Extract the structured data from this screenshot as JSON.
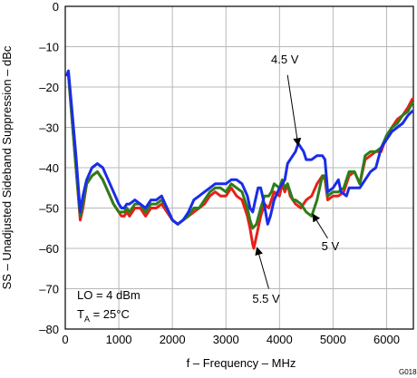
{
  "chart_data": {
    "type": "line",
    "title": "",
    "xlabel": "f – Frequency – MHz",
    "ylabel": "SS – Unadjusted Sideband Suppression – dBc",
    "xlim": [
      0,
      6500
    ],
    "ylim": [
      -80,
      0
    ],
    "x_ticks": [
      0,
      1000,
      2000,
      3000,
      4000,
      5000,
      6000
    ],
    "y_ticks": [
      0,
      -10,
      -20,
      -30,
      -40,
      -50,
      -60,
      -70,
      -80
    ],
    "x_tick_labels": [
      "0",
      "1000",
      "2000",
      "3000",
      "4000",
      "5000",
      "6000"
    ],
    "y_tick_labels": [
      "0",
      "–10",
      "–20",
      "–30",
      "–40",
      "–50",
      "–60",
      "–70",
      "–80"
    ],
    "grid": true,
    "legend": "none",
    "annotations": {
      "lo_text": "LO = 4 dBm",
      "ta_text": "T",
      "ta_sub": "A",
      "ta_value": " = 25°C",
      "figure_id": "G018"
    },
    "series": [
      {
        "name": "5.5 V",
        "color": "#e8201a",
        "points": [
          [
            30,
            -17
          ],
          [
            60,
            -17
          ],
          [
            120,
            -27
          ],
          [
            200,
            -40
          ],
          [
            280,
            -53
          ],
          [
            330,
            -50
          ],
          [
            400,
            -44
          ],
          [
            500,
            -42
          ],
          [
            600,
            -41
          ],
          [
            700,
            -43
          ],
          [
            800,
            -46
          ],
          [
            900,
            -49
          ],
          [
            1000,
            -51
          ],
          [
            1050,
            -52
          ],
          [
            1100,
            -52
          ],
          [
            1150,
            -51
          ],
          [
            1200,
            -52
          ],
          [
            1300,
            -50
          ],
          [
            1400,
            -50
          ],
          [
            1500,
            -52
          ],
          [
            1600,
            -50
          ],
          [
            1700,
            -50
          ],
          [
            1800,
            -49
          ],
          [
            1900,
            -51
          ],
          [
            2000,
            -53
          ],
          [
            2100,
            -54
          ],
          [
            2200,
            -53
          ],
          [
            2300,
            -52
          ],
          [
            2400,
            -51
          ],
          [
            2500,
            -50
          ],
          [
            2600,
            -49
          ],
          [
            2700,
            -47
          ],
          [
            2800,
            -46
          ],
          [
            2900,
            -47
          ],
          [
            3000,
            -47
          ],
          [
            3100,
            -45
          ],
          [
            3200,
            -47
          ],
          [
            3300,
            -48
          ],
          [
            3400,
            -52
          ],
          [
            3450,
            -55
          ],
          [
            3500,
            -59
          ],
          [
            3520,
            -60
          ],
          [
            3570,
            -57
          ],
          [
            3650,
            -52
          ],
          [
            3720,
            -49
          ],
          [
            3800,
            -50
          ],
          [
            3850,
            -48
          ],
          [
            3900,
            -46
          ],
          [
            4000,
            -47
          ],
          [
            4050,
            -44
          ],
          [
            4100,
            -46
          ],
          [
            4150,
            -44
          ],
          [
            4200,
            -47
          ],
          [
            4300,
            -49
          ],
          [
            4400,
            -50
          ],
          [
            4500,
            -48
          ],
          [
            4600,
            -47
          ],
          [
            4700,
            -44
          ],
          [
            4800,
            -42
          ],
          [
            4850,
            -43
          ],
          [
            4900,
            -48
          ],
          [
            5000,
            -47
          ],
          [
            5100,
            -47
          ],
          [
            5200,
            -46
          ],
          [
            5300,
            -42
          ],
          [
            5400,
            -41
          ],
          [
            5500,
            -44
          ],
          [
            5600,
            -38
          ],
          [
            5700,
            -37
          ],
          [
            5800,
            -36
          ],
          [
            5900,
            -36
          ],
          [
            6000,
            -32
          ],
          [
            6100,
            -30
          ],
          [
            6200,
            -28
          ],
          [
            6300,
            -27
          ],
          [
            6400,
            -25
          ],
          [
            6480,
            -23
          ]
        ]
      },
      {
        "name": "5 V",
        "color": "#2e7d18",
        "points": [
          [
            30,
            -17
          ],
          [
            60,
            -17
          ],
          [
            120,
            -27
          ],
          [
            200,
            -40
          ],
          [
            280,
            -52
          ],
          [
            330,
            -49
          ],
          [
            400,
            -44
          ],
          [
            500,
            -42
          ],
          [
            600,
            -41
          ],
          [
            700,
            -43
          ],
          [
            800,
            -46
          ],
          [
            900,
            -49
          ],
          [
            1000,
            -51
          ],
          [
            1050,
            -51
          ],
          [
            1100,
            -51
          ],
          [
            1150,
            -50
          ],
          [
            1200,
            -51
          ],
          [
            1300,
            -49
          ],
          [
            1400,
            -49
          ],
          [
            1500,
            -51
          ],
          [
            1600,
            -49
          ],
          [
            1700,
            -49
          ],
          [
            1800,
            -48
          ],
          [
            1900,
            -50
          ],
          [
            2000,
            -53
          ],
          [
            2100,
            -54
          ],
          [
            2200,
            -53
          ],
          [
            2300,
            -52
          ],
          [
            2400,
            -50
          ],
          [
            2500,
            -50
          ],
          [
            2600,
            -48
          ],
          [
            2700,
            -46
          ],
          [
            2800,
            -45
          ],
          [
            2900,
            -45
          ],
          [
            3000,
            -46
          ],
          [
            3100,
            -44
          ],
          [
            3200,
            -45
          ],
          [
            3300,
            -46
          ],
          [
            3400,
            -50
          ],
          [
            3450,
            -53
          ],
          [
            3500,
            -55
          ],
          [
            3570,
            -54
          ],
          [
            3650,
            -50
          ],
          [
            3720,
            -47
          ],
          [
            3800,
            -47
          ],
          [
            3850,
            -46
          ],
          [
            3900,
            -44
          ],
          [
            4000,
            -45
          ],
          [
            4050,
            -43
          ],
          [
            4100,
            -45
          ],
          [
            4150,
            -44
          ],
          [
            4200,
            -46
          ],
          [
            4250,
            -48
          ],
          [
            4300,
            -48
          ],
          [
            4400,
            -49
          ],
          [
            4500,
            -51
          ],
          [
            4600,
            -52
          ],
          [
            4700,
            -48
          ],
          [
            4800,
            -42
          ],
          [
            4850,
            -42
          ],
          [
            4900,
            -47
          ],
          [
            5000,
            -46
          ],
          [
            5100,
            -46
          ],
          [
            5200,
            -45
          ],
          [
            5300,
            -41
          ],
          [
            5400,
            -41
          ],
          [
            5500,
            -44
          ],
          [
            5600,
            -37
          ],
          [
            5700,
            -36
          ],
          [
            5800,
            -36
          ],
          [
            5900,
            -35
          ],
          [
            6000,
            -32
          ],
          [
            6100,
            -30
          ],
          [
            6200,
            -29
          ],
          [
            6300,
            -27
          ],
          [
            6400,
            -26
          ],
          [
            6480,
            -24
          ]
        ]
      },
      {
        "name": "4.5 V",
        "color": "#1a2ce8",
        "points": [
          [
            30,
            -17
          ],
          [
            60,
            -16
          ],
          [
            120,
            -25
          ],
          [
            200,
            -37
          ],
          [
            280,
            -51
          ],
          [
            330,
            -47
          ],
          [
            400,
            -43
          ],
          [
            500,
            -40
          ],
          [
            600,
            -39
          ],
          [
            700,
            -40
          ],
          [
            800,
            -43
          ],
          [
            900,
            -46
          ],
          [
            1000,
            -49
          ],
          [
            1050,
            -50
          ],
          [
            1100,
            -50
          ],
          [
            1150,
            -49
          ],
          [
            1200,
            -49
          ],
          [
            1300,
            -48
          ],
          [
            1400,
            -49
          ],
          [
            1500,
            -50
          ],
          [
            1600,
            -48
          ],
          [
            1700,
            -48
          ],
          [
            1800,
            -47
          ],
          [
            1900,
            -50
          ],
          [
            2000,
            -53
          ],
          [
            2100,
            -54
          ],
          [
            2200,
            -53
          ],
          [
            2300,
            -51
          ],
          [
            2400,
            -48
          ],
          [
            2500,
            -47
          ],
          [
            2600,
            -46
          ],
          [
            2700,
            -45
          ],
          [
            2800,
            -44
          ],
          [
            2900,
            -44
          ],
          [
            3000,
            -44
          ],
          [
            3100,
            -43
          ],
          [
            3200,
            -43
          ],
          [
            3300,
            -44
          ],
          [
            3400,
            -47
          ],
          [
            3450,
            -50
          ],
          [
            3500,
            -51
          ],
          [
            3550,
            -48
          ],
          [
            3600,
            -45
          ],
          [
            3650,
            -45
          ],
          [
            3700,
            -48
          ],
          [
            3780,
            -54
          ],
          [
            3830,
            -52
          ],
          [
            3900,
            -48
          ],
          [
            4000,
            -45
          ],
          [
            4100,
            -43
          ],
          [
            4150,
            -39
          ],
          [
            4200,
            -38
          ],
          [
            4300,
            -36
          ],
          [
            4350,
            -34
          ],
          [
            4450,
            -36
          ],
          [
            4500,
            -38
          ],
          [
            4600,
            -38
          ],
          [
            4700,
            -37
          ],
          [
            4800,
            -37
          ],
          [
            4850,
            -38
          ],
          [
            4900,
            -46
          ],
          [
            5000,
            -45
          ],
          [
            5100,
            -43
          ],
          [
            5150,
            -46
          ],
          [
            5250,
            -47
          ],
          [
            5300,
            -45
          ],
          [
            5400,
            -45
          ],
          [
            5500,
            -45
          ],
          [
            5600,
            -43
          ],
          [
            5700,
            -41
          ],
          [
            5800,
            -40
          ],
          [
            5900,
            -35
          ],
          [
            6000,
            -33
          ],
          [
            6100,
            -31
          ],
          [
            6200,
            -30
          ],
          [
            6300,
            -29
          ],
          [
            6400,
            -27
          ],
          [
            6480,
            -26
          ]
        ]
      }
    ],
    "labels": [
      {
        "text": "4.5 V",
        "x": 4100,
        "y": -14.2,
        "arrow_to": [
          4350,
          -34.5
        ],
        "arrow_from": [
          4150,
          -17
        ]
      },
      {
        "text": "5 V",
        "x": 4950,
        "y": -60.4,
        "arrow_to": [
          4620,
          -51.5
        ],
        "arrow_from": [
          4900,
          -57.5
        ]
      },
      {
        "text": "5.5 V",
        "x": 3750,
        "y": -73.5,
        "arrow_to": [
          3580,
          -59.8
        ],
        "arrow_from": [
          3800,
          -70
        ]
      }
    ]
  }
}
